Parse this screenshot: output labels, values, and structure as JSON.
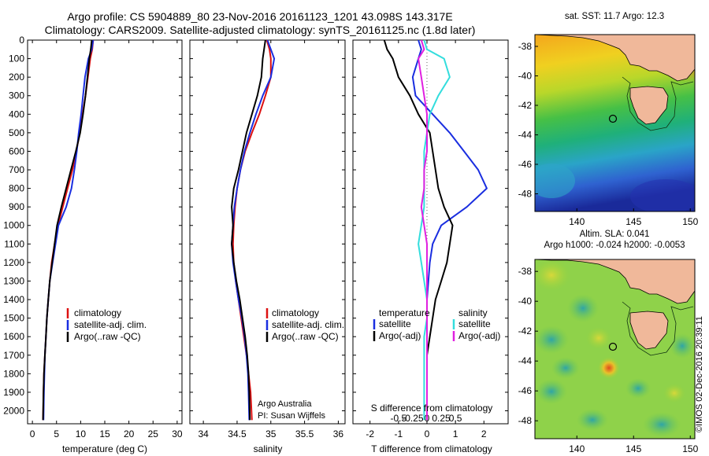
{
  "title_line1": "Argo profile: CS 5904889_80 23-Nov-2016 20161123_1201 43.098S 143.317E",
  "title_line2": "Climatology: CARS2009. Satellite-adjusted climatology: synTS_20161125.nc (1.8d later)",
  "credit": "Argo Australia",
  "pi": "PI: Susan Wijffels",
  "imos_stamp": "©IMOS 02-Dec-2016 20:39:11",
  "map1_title": "sat. SST: 11.7 Argo: 12.3",
  "map2_title1": "Altim. SLA: 0.041",
  "map2_title2": "Argo h1000: -0.024 h2000: -0.0053",
  "colors": {
    "climatology": "#dd1111",
    "satellite": "#1a2ee0",
    "argo": "#000000",
    "sat_salinity": "#33dddd",
    "argo_salinity": "#e020e0",
    "land": "#f0b89a"
  },
  "chart_data": [
    {
      "type": "line",
      "xlabel": "temperature (deg C)",
      "ylabel": "",
      "xlim": [
        -1,
        31
      ],
      "ylim": [
        2070,
        0
      ],
      "xticks": [
        0,
        5,
        10,
        15,
        20,
        25,
        30
      ],
      "xtick_labels": [
        "0",
        "5",
        "10",
        "15",
        "20",
        "25",
        "30"
      ],
      "yticks": [
        0,
        100,
        200,
        300,
        400,
        500,
        600,
        700,
        800,
        900,
        1000,
        1100,
        1200,
        1300,
        1400,
        1500,
        1600,
        1700,
        1800,
        1900,
        2000
      ],
      "legend": [
        "climatology",
        "satellite-adj. clim.",
        "Argo(..raw -QC)"
      ],
      "series": [
        {
          "name": "climatology",
          "color_key": "climatology",
          "x": [
            12.6,
            12.4,
            12.0,
            11.5,
            11.0,
            10.4,
            9.8,
            9.1,
            8.3,
            7.3,
            6.3,
            5.3,
            4.6,
            4.0,
            3.6,
            3.3,
            3.0,
            2.8,
            2.6,
            2.4,
            2.3,
            2.2
          ],
          "y": [
            0,
            50,
            100,
            200,
            300,
            400,
            500,
            600,
            700,
            800,
            900,
            1000,
            1100,
            1200,
            1300,
            1400,
            1500,
            1600,
            1700,
            1800,
            1900,
            2050
          ]
        },
        {
          "name": "satellite-adj. clim.",
          "color_key": "satellite",
          "x": [
            12.6,
            12.3,
            11.6,
            10.9,
            10.5,
            10.1,
            9.6,
            9.2,
            8.7,
            8.1,
            7.0,
            5.4,
            4.8,
            4.2,
            3.6,
            3.3,
            3.0,
            2.8,
            2.6,
            2.5,
            2.4,
            2.3
          ],
          "y": [
            0,
            50,
            100,
            200,
            300,
            400,
            500,
            600,
            700,
            800,
            900,
            1000,
            1100,
            1200,
            1300,
            1400,
            1500,
            1600,
            1700,
            1800,
            1900,
            2050
          ]
        },
        {
          "name": "Argo(..raw -QC)",
          "color_key": "argo",
          "x": [
            12.3,
            12.1,
            11.8,
            11.4,
            11.0,
            10.5,
            9.9,
            9.0,
            8.0,
            7.0,
            6.0,
            5.1,
            4.6,
            4.1,
            3.6,
            3.3,
            3.0,
            2.8,
            2.6,
            2.4,
            2.3,
            2.2
          ],
          "y": [
            0,
            50,
            100,
            200,
            300,
            400,
            500,
            600,
            700,
            800,
            900,
            1000,
            1100,
            1200,
            1300,
            1400,
            1500,
            1600,
            1700,
            1800,
            1900,
            2050
          ]
        }
      ]
    },
    {
      "type": "line",
      "xlabel": "salinity",
      "ylabel": "",
      "xlim": [
        33.8,
        36.1
      ],
      "ylim": [
        2070,
        0
      ],
      "xticks": [
        34,
        34.5,
        35,
        35.5,
        36
      ],
      "xtick_labels": [
        "34",
        "34.5",
        "35",
        "35.5",
        "36"
      ],
      "yticks": [
        0,
        100,
        200,
        300,
        400,
        500,
        600,
        700,
        800,
        900,
        1000,
        1100,
        1200,
        1300,
        1400,
        1500,
        1600,
        1700,
        1800,
        1900,
        2000
      ],
      "legend": [
        "climatology",
        "satellite-adj. clim.",
        "Argo(..raw -QC)"
      ],
      "series": [
        {
          "name": "climatology",
          "color_key": "climatology",
          "x": [
            34.94,
            34.98,
            35.0,
            35.0,
            34.92,
            34.83,
            34.72,
            34.62,
            34.55,
            34.5,
            34.47,
            34.45,
            34.44,
            34.45,
            34.48,
            34.52,
            34.56,
            34.6,
            34.64,
            34.67,
            34.7,
            34.72
          ],
          "y": [
            0,
            50,
            100,
            200,
            300,
            400,
            500,
            600,
            700,
            800,
            900,
            1000,
            1100,
            1200,
            1300,
            1400,
            1500,
            1600,
            1700,
            1800,
            1900,
            2050
          ]
        },
        {
          "name": "satellite-adj. clim.",
          "color_key": "satellite",
          "x": [
            34.95,
            35.0,
            35.05,
            35.0,
            34.88,
            34.78,
            34.69,
            34.61,
            34.55,
            34.5,
            34.46,
            34.44,
            34.42,
            34.44,
            34.48,
            34.52,
            34.57,
            34.61,
            34.64,
            34.66,
            34.67,
            34.68
          ],
          "y": [
            0,
            50,
            100,
            200,
            300,
            400,
            500,
            600,
            700,
            800,
            900,
            1000,
            1100,
            1200,
            1300,
            1400,
            1500,
            1600,
            1700,
            1800,
            1900,
            2050
          ]
        },
        {
          "name": "Argo(..raw -QC)",
          "color_key": "argo",
          "x": [
            34.92,
            34.9,
            34.88,
            34.86,
            34.8,
            34.72,
            34.64,
            34.58,
            34.52,
            34.45,
            34.42,
            34.44,
            34.42,
            34.45,
            34.49,
            34.54,
            34.58,
            34.62,
            34.65,
            34.67,
            34.68,
            34.69
          ],
          "y": [
            0,
            50,
            100,
            200,
            300,
            400,
            500,
            600,
            700,
            800,
            900,
            1000,
            1100,
            1200,
            1300,
            1400,
            1500,
            1600,
            1700,
            1800,
            1900,
            2050
          ]
        }
      ]
    },
    {
      "type": "line",
      "xlabel": "T difference from climatology",
      "xlabel_top": "S difference from climatology",
      "ylabel": "",
      "xlim": [
        -2.6,
        2.85
      ],
      "ylim": [
        2070,
        0
      ],
      "xticks": [
        -2,
        -1,
        0,
        1,
        2
      ],
      "xtick_labels": [
        "-2",
        "-1",
        "0",
        "1",
        "2"
      ],
      "top_ticks_x": [
        -1.0,
        -0.5,
        0,
        0.5,
        1.0
      ],
      "top_tick_labels": [
        "-0.5",
        "-0.25",
        "0",
        "0.25",
        "0.5"
      ],
      "yticks": [
        0,
        100,
        200,
        300,
        400,
        500,
        600,
        700,
        800,
        900,
        1000,
        1100,
        1200,
        1300,
        1400,
        1500,
        1600,
        1700,
        1800,
        1900,
        2000
      ],
      "legend_left_title": "temperature",
      "legend_right_title": "salinity",
      "legend_left": [
        "satellite",
        "Argo(-adj)"
      ],
      "legend_right": [
        "satellite",
        "Argo(-adj)"
      ],
      "series": [
        {
          "name": "satellite",
          "color_key": "satellite",
          "x": [
            -0.3,
            -0.2,
            -0.3,
            -0.5,
            -0.4,
            0.2,
            0.8,
            1.3,
            1.8,
            2.1,
            1.4,
            0.5,
            0.2,
            0.1,
            0.05,
            0.0,
            0.0,
            0.0,
            0.0,
            0.0,
            0.0
          ],
          "y": [
            0,
            50,
            100,
            200,
            300,
            400,
            500,
            600,
            700,
            800,
            900,
            1000,
            1100,
            1200,
            1300,
            1400,
            1500,
            1600,
            1700,
            1800,
            2050
          ]
        },
        {
          "name": "Argo(-adj)",
          "color_key": "argo",
          "x": [
            -1.5,
            -1.4,
            -1.2,
            -1.0,
            -0.6,
            -0.3,
            0.1,
            0.2,
            0.3,
            0.4,
            0.6,
            0.9,
            0.8,
            0.7,
            0.5,
            0.3,
            0.2,
            0.1,
            0.0,
            0.0,
            0.0
          ],
          "y": [
            0,
            50,
            100,
            200,
            300,
            400,
            500,
            600,
            700,
            800,
            900,
            1000,
            1100,
            1200,
            1300,
            1400,
            1500,
            1600,
            1700,
            1800,
            2050
          ]
        },
        {
          "name": "satellite",
          "color_key": "sat_salinity",
          "x": [
            -0.1,
            0.0,
            0.6,
            0.8,
            0.4,
            0.1,
            0.0,
            -0.1,
            -0.1,
            -0.1,
            -0.1,
            -0.2,
            -0.3,
            -0.2,
            -0.1,
            0.0,
            0.0,
            -0.1,
            -0.1,
            -0.1,
            -0.1
          ],
          "y": [
            0,
            50,
            100,
            200,
            300,
            400,
            500,
            600,
            700,
            800,
            900,
            1000,
            1100,
            1200,
            1300,
            1400,
            1500,
            1600,
            1700,
            1800,
            2050
          ]
        },
        {
          "name": "Argo(-adj)",
          "color_key": "argo_salinity",
          "x": [
            -0.2,
            -0.1,
            -0.3,
            -0.2,
            -0.1,
            0.0,
            0.0,
            0.0,
            -0.1,
            -0.1,
            -0.2,
            -0.1,
            0.0,
            0.0,
            0.0,
            0.0,
            0.0,
            0.0,
            0.0,
            0.0,
            0.0
          ],
          "y": [
            0,
            50,
            100,
            200,
            300,
            400,
            500,
            600,
            700,
            800,
            900,
            1000,
            1100,
            1200,
            1300,
            1400,
            1500,
            1600,
            1700,
            1800,
            2050
          ]
        }
      ]
    },
    {
      "type": "heatmap",
      "title": "sat. SST: 11.7 Argo: 12.3",
      "xlim": [
        136.3,
        150.4
      ],
      "ylim": [
        -49.2,
        -37.2
      ],
      "xticks": [
        140,
        145,
        150
      ],
      "xtick_labels": [
        "140",
        "145",
        "150"
      ],
      "yticks": [
        -38,
        -40,
        -42,
        -44,
        -46,
        -48
      ],
      "ytick_labels": [
        "-38",
        "-40",
        "-42",
        "-44",
        "-46",
        "-48"
      ],
      "float_position": [
        143.317,
        -43.098
      ]
    },
    {
      "type": "heatmap",
      "title": "Altim. SLA: 0.041",
      "xlim": [
        136.3,
        150.4
      ],
      "ylim": [
        -49.2,
        -37.2
      ],
      "xticks": [
        140,
        145,
        150
      ],
      "xtick_labels": [
        "140",
        "145",
        "150"
      ],
      "yticks": [
        -38,
        -40,
        -42,
        -44,
        -46,
        -48
      ],
      "ytick_labels": [
        "-38",
        "-40",
        "-42",
        "-44",
        "-46",
        "-48"
      ],
      "float_position": [
        143.317,
        -43.098
      ]
    }
  ]
}
